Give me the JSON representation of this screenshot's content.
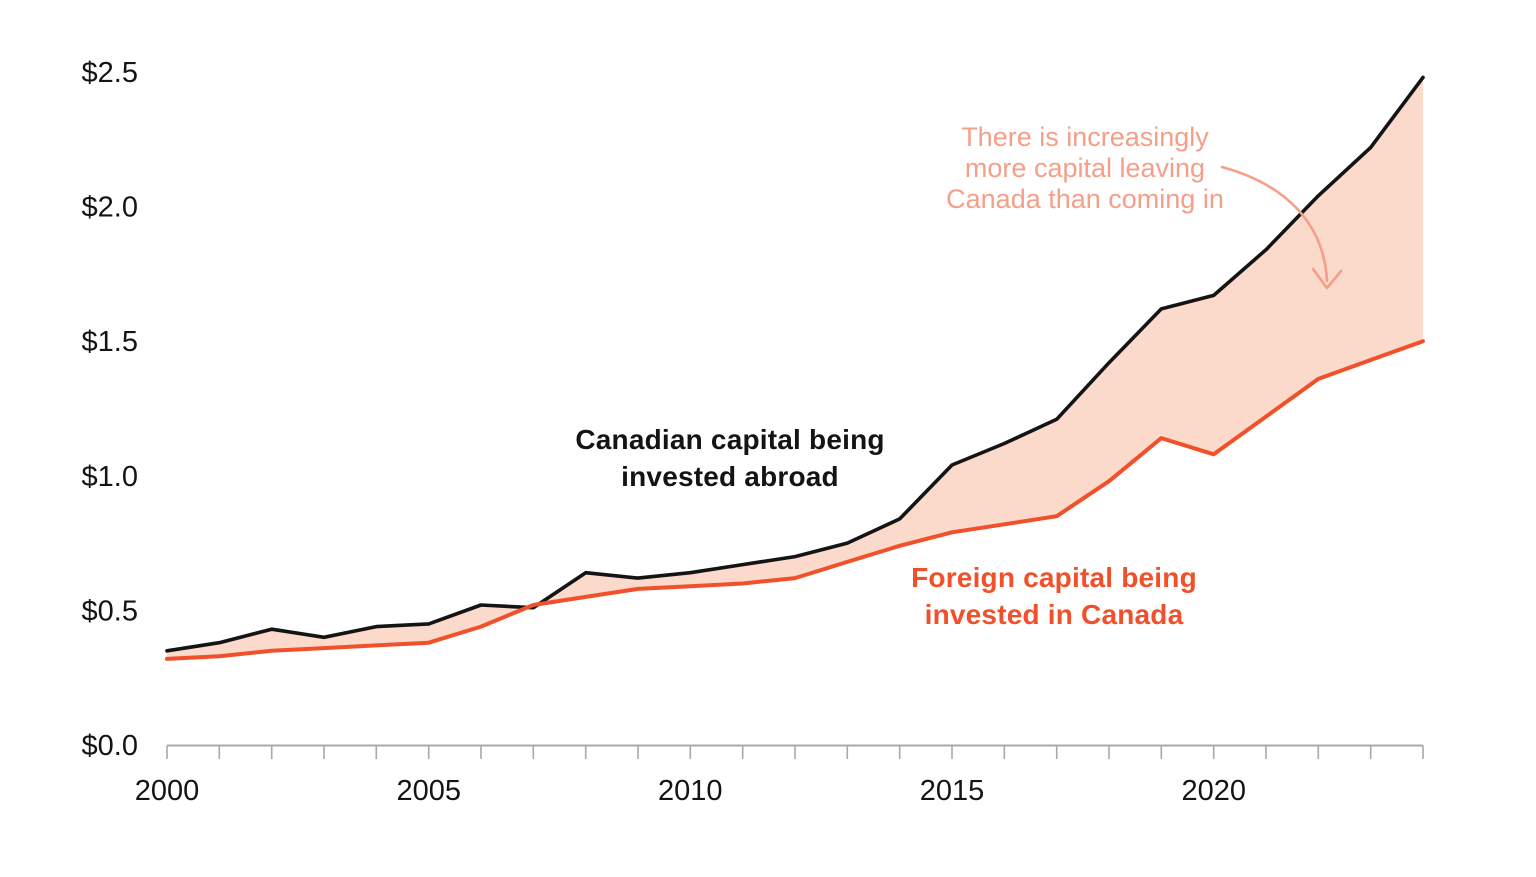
{
  "chart_data": {
    "type": "area",
    "title": "",
    "xlabel": "",
    "ylabel": "",
    "x_years": [
      2000,
      2001,
      2002,
      2003,
      2004,
      2005,
      2006,
      2007,
      2008,
      2009,
      2010,
      2011,
      2012,
      2013,
      2014,
      2015,
      2016,
      2017,
      2018,
      2019,
      2020,
      2021,
      2022,
      2023,
      2024
    ],
    "series": [
      {
        "name": "Canadian capital being invested abroad",
        "color": "#141414",
        "values": [
          0.35,
          0.38,
          0.43,
          0.4,
          0.44,
          0.45,
          0.52,
          0.51,
          0.64,
          0.62,
          0.64,
          0.67,
          0.7,
          0.75,
          0.84,
          1.04,
          1.12,
          1.21,
          1.42,
          1.62,
          1.67,
          1.84,
          2.04,
          2.22,
          2.48
        ]
      },
      {
        "name": "Foreign capital being invested in Canada",
        "color": "#f0502a",
        "values": [
          0.32,
          0.33,
          0.35,
          0.36,
          0.37,
          0.38,
          0.44,
          0.52,
          0.55,
          0.58,
          0.59,
          0.6,
          0.62,
          0.68,
          0.74,
          0.79,
          0.82,
          0.85,
          0.98,
          1.14,
          1.08,
          1.22,
          1.36,
          1.43,
          1.5
        ]
      }
    ],
    "band_fill_color": "#fbd9cb",
    "ylim": [
      0,
      2.5
    ],
    "ytick_values": [
      0,
      0.5,
      1.0,
      1.5,
      2.0,
      2.5
    ],
    "ytick_labels": [
      "$0.0",
      "$0.5",
      "$1.0",
      "$1.5",
      "$2.0",
      "$2.5"
    ],
    "xtick_labeled_years": [
      2000,
      2005,
      2010,
      2015,
      2020
    ],
    "grid": false,
    "legend_position": "inline-labels",
    "axis_color": "#a9a9a9",
    "tick_text_color": "#141414"
  },
  "series_labels": {
    "abroad_line1": "Canadian capital being",
    "abroad_line2": "invested abroad",
    "canada_line1": "Foreign capital being",
    "canada_line2": "invested in Canada"
  },
  "annotation": {
    "line1": "There is increasingly",
    "line2": "more capital leaving",
    "line3": "Canada than coming in",
    "color": "#f59e88"
  }
}
